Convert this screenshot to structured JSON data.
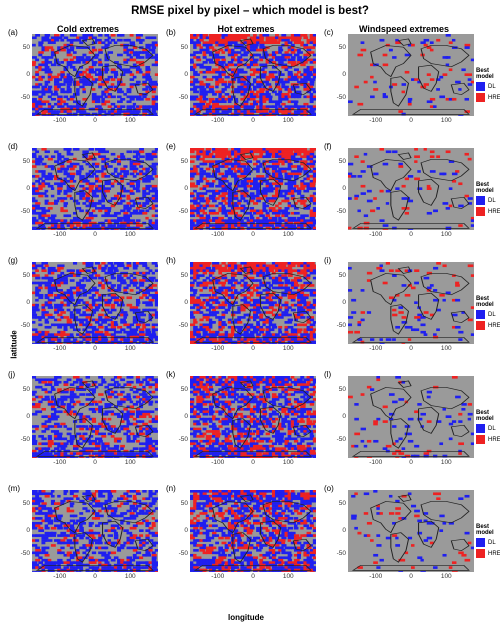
{
  "title": "RMSE pixel by pixel – which model is best?",
  "columns": [
    "Cold extremes",
    "Hot extremes",
    "Windspeed extremes"
  ],
  "panel_labels": [
    "(a)",
    "(b)",
    "(c)",
    "(d)",
    "(e)",
    "(f)",
    "(g)",
    "(h)",
    "(i)",
    "(j)",
    "(k)",
    "(l)",
    "(m)",
    "(n)",
    "(o)"
  ],
  "y_ticks": [
    "50",
    "0",
    "-50"
  ],
  "x_ticks": [
    "-100",
    "0",
    "100"
  ],
  "xlabel": "longitude",
  "ylabel": "latitude",
  "legend": {
    "title": "Best model",
    "items": [
      {
        "label": "DL",
        "color": "#1f1ff0"
      },
      {
        "label": "HRES",
        "color": "#ee2222"
      }
    ]
  },
  "colors": {
    "land_background": "#9a9a9a",
    "dl": "#1f1ff0",
    "hres": "#ee2222"
  }
}
